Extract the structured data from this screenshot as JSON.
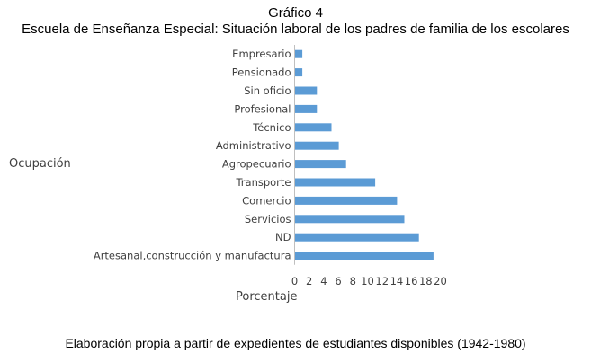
{
  "figure_label": "Gráfico 4",
  "chart_data": {
    "type": "bar",
    "orientation": "horizontal",
    "title": "Escuela de Enseñanza Especial: Situación laboral de los padres de familia de los escolares",
    "xlabel": "Porcentaje",
    "ylabel": "Ocupación",
    "categories": [
      "Empresario",
      "Pensionado",
      "Sin oficio",
      "Profesional",
      "Técnico",
      "Administrativo",
      "Agropecuario",
      "Transporte",
      "Comercio",
      "Servicios",
      "ND",
      "Artesanal,construcción y manufactura"
    ],
    "values": [
      1.0,
      1.0,
      3.0,
      3.0,
      5.0,
      6.0,
      7.0,
      11.0,
      14.0,
      15.0,
      17.0,
      19.0
    ],
    "xlim": [
      0,
      20
    ],
    "xticks": [
      0,
      2,
      4,
      6,
      8,
      10,
      12,
      14,
      16,
      18,
      20
    ],
    "bar_color": "#5b9bd5",
    "grid": false
  },
  "source_note": "Elaboración propia a partir de expedientes de estudiantes disponibles (1942-1980)"
}
